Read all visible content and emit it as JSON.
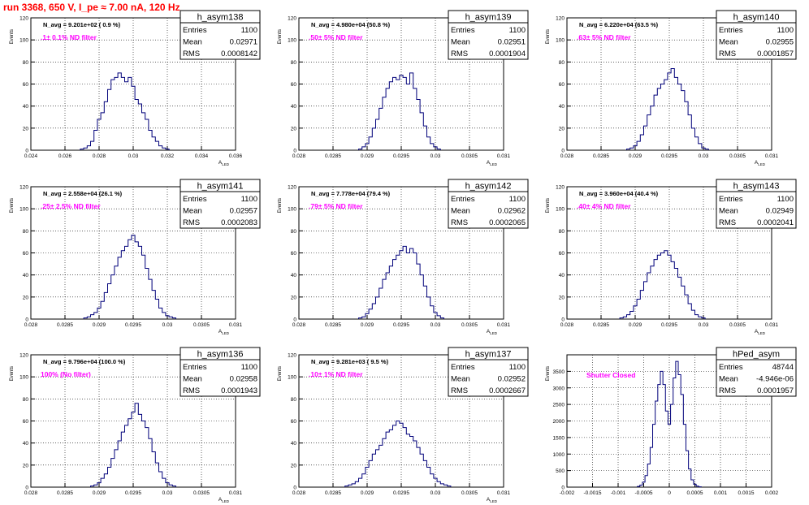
{
  "header": {
    "title": "run 3368,   650 V, I_pe ≈ 7.00 nA, 120 Hz"
  },
  "chart_data": [
    {
      "type": "histogram",
      "name": "h_asym138",
      "stats": {
        "entries_label": "Entries",
        "entries": "1100",
        "mean_label": "Mean",
        "mean": "0.02971",
        "rms_label": "RMS",
        "rms": "0.0008142"
      },
      "navg_text": "N_avg = 9.201e+02 ( 0.9 %)",
      "filter_label": ".1± 0.1% ND filter",
      "ylabel": "Events",
      "xlabel": "A_LED",
      "xlim": [
        0.024,
        0.036
      ],
      "ylim": [
        0,
        120
      ],
      "xticks": [
        0.024,
        0.026,
        0.028,
        0.03,
        0.032,
        0.034,
        0.036
      ],
      "xtick_labels": [
        "0.024",
        "0.026",
        "0.028",
        "0.03",
        "0.032",
        "0.034",
        "0.036"
      ],
      "yticks": [
        0,
        20,
        40,
        60,
        80,
        100,
        120
      ],
      "x": [
        0.027,
        0.0272,
        0.0274,
        0.0276,
        0.0278,
        0.028,
        0.0282,
        0.0284,
        0.0286,
        0.0288,
        0.029,
        0.0292,
        0.0294,
        0.0296,
        0.0298,
        0.03,
        0.0302,
        0.0304,
        0.0306,
        0.0308,
        0.031,
        0.0312,
        0.0314,
        0.0316,
        0.0318,
        0.032
      ],
      "y": [
        1,
        2,
        4,
        8,
        18,
        28,
        34,
        44,
        55,
        64,
        66,
        70,
        66,
        62,
        66,
        58,
        46,
        42,
        34,
        28,
        18,
        12,
        8,
        4,
        2,
        1
      ]
    },
    {
      "type": "histogram",
      "name": "h_asym139",
      "stats": {
        "entries_label": "Entries",
        "entries": "1100",
        "mean_label": "Mean",
        "mean": "0.02951",
        "rms_label": "RMS",
        "rms": "0.0001904"
      },
      "navg_text": "N_avg = 4.980e+04 (50.8 %)",
      "filter_label": ".50± 5% ND filter",
      "ylabel": "Events",
      "xlabel": "A_LED",
      "xlim": [
        0.028,
        0.031
      ],
      "ylim": [
        0,
        120
      ],
      "xticks": [
        0.028,
        0.0285,
        0.029,
        0.0295,
        0.03,
        0.0305,
        0.031
      ],
      "xtick_labels": [
        "0.028",
        "0.0285",
        "0.029",
        "0.0295",
        "0.03",
        "0.0305",
        "0.031"
      ],
      "yticks": [
        0,
        20,
        40,
        60,
        80,
        100,
        120
      ],
      "x": [
        0.0289,
        0.02895,
        0.029,
        0.02905,
        0.0291,
        0.02915,
        0.0292,
        0.02925,
        0.0293,
        0.02935,
        0.0294,
        0.02945,
        0.0295,
        0.02955,
        0.0296,
        0.02965,
        0.0297,
        0.02975,
        0.0298,
        0.02985,
        0.0299,
        0.02995,
        0.03,
        0.03005
      ],
      "y": [
        1,
        3,
        6,
        12,
        20,
        28,
        38,
        48,
        56,
        62,
        66,
        64,
        68,
        66,
        60,
        70,
        56,
        46,
        34,
        22,
        12,
        6,
        3,
        1
      ]
    },
    {
      "type": "histogram",
      "name": "h_asym140",
      "stats": {
        "entries_label": "Entries",
        "entries": "1100",
        "mean_label": "Mean",
        "mean": "0.02955",
        "rms_label": "RMS",
        "rms": "0.0001857"
      },
      "navg_text": "N_avg = 6.220e+04 (63.5 %)",
      "filter_label": ".63± 5% ND filter",
      "ylabel": "Events",
      "xlabel": "A_LED",
      "xlim": [
        0.028,
        0.031
      ],
      "ylim": [
        0,
        120
      ],
      "xticks": [
        0.028,
        0.0285,
        0.029,
        0.0295,
        0.03,
        0.0305,
        0.031
      ],
      "xtick_labels": [
        "0.028",
        "0.0285",
        "0.029",
        "0.0295",
        "0.03",
        "0.0305",
        "0.031"
      ],
      "yticks": [
        0,
        20,
        40,
        60,
        80,
        100,
        120
      ],
      "x": [
        0.0289,
        0.02895,
        0.029,
        0.02905,
        0.0291,
        0.02915,
        0.0292,
        0.02925,
        0.0293,
        0.02935,
        0.0294,
        0.02945,
        0.0295,
        0.02955,
        0.0296,
        0.02965,
        0.0297,
        0.02975,
        0.0298,
        0.02985,
        0.0299,
        0.02995,
        0.03,
        0.03005
      ],
      "y": [
        1,
        2,
        4,
        8,
        14,
        22,
        32,
        40,
        50,
        56,
        60,
        64,
        70,
        74,
        66,
        60,
        54,
        44,
        32,
        20,
        12,
        6,
        2,
        1
      ]
    },
    {
      "type": "histogram",
      "name": "h_asym141",
      "stats": {
        "entries_label": "Entries",
        "entries": "1100",
        "mean_label": "Mean",
        "mean": "0.02957",
        "rms_label": "RMS",
        "rms": "0.0002083"
      },
      "navg_text": "N_avg = 2.558e+04 (26.1 %)",
      "filter_label": ".25± 2.5% ND filter",
      "ylabel": "Events",
      "xlabel": "A_LED",
      "xlim": [
        0.028,
        0.031
      ],
      "ylim": [
        0,
        120
      ],
      "xticks": [
        0.028,
        0.0285,
        0.029,
        0.0295,
        0.03,
        0.0305,
        0.031
      ],
      "xtick_labels": [
        "0.028",
        "0.0285",
        "0.029",
        "0.0295",
        "0.03",
        "0.0305",
        "0.031"
      ],
      "yticks": [
        0,
        20,
        40,
        60,
        80,
        100,
        120
      ],
      "x": [
        0.0288,
        0.02885,
        0.0289,
        0.02895,
        0.029,
        0.02905,
        0.0291,
        0.02915,
        0.0292,
        0.02925,
        0.0293,
        0.02935,
        0.0294,
        0.02945,
        0.0295,
        0.02955,
        0.0296,
        0.02965,
        0.0297,
        0.02975,
        0.0298,
        0.02985,
        0.0299,
        0.02995,
        0.03,
        0.03005,
        0.0301
      ],
      "y": [
        1,
        2,
        4,
        6,
        10,
        16,
        24,
        32,
        40,
        48,
        56,
        62,
        66,
        72,
        76,
        70,
        66,
        58,
        46,
        36,
        26,
        18,
        10,
        6,
        3,
        2,
        1
      ]
    },
    {
      "type": "histogram",
      "name": "h_asym142",
      "stats": {
        "entries_label": "Entries",
        "entries": "1100",
        "mean_label": "Mean",
        "mean": "0.02962",
        "rms_label": "RMS",
        "rms": "0.0002065"
      },
      "navg_text": "N_avg = 7.778e+04 (79.4 %)",
      "filter_label": ".79± 5% ND filter",
      "ylabel": "Events",
      "xlabel": "A_LED",
      "xlim": [
        0.028,
        0.031
      ],
      "ylim": [
        0,
        120
      ],
      "xticks": [
        0.028,
        0.0285,
        0.029,
        0.0295,
        0.03,
        0.0305,
        0.031
      ],
      "xtick_labels": [
        "0.028",
        "0.0285",
        "0.029",
        "0.0295",
        "0.03",
        "0.0305",
        "0.031"
      ],
      "yticks": [
        0,
        20,
        40,
        60,
        80,
        100,
        120
      ],
      "x": [
        0.0289,
        0.02895,
        0.029,
        0.02905,
        0.0291,
        0.02915,
        0.0292,
        0.02925,
        0.0293,
        0.02935,
        0.0294,
        0.02945,
        0.0295,
        0.02955,
        0.0296,
        0.02965,
        0.0297,
        0.02975,
        0.0298,
        0.02985,
        0.0299,
        0.02995,
        0.03,
        0.03005,
        0.0301
      ],
      "y": [
        1,
        2,
        5,
        9,
        14,
        20,
        28,
        36,
        42,
        48,
        54,
        58,
        62,
        66,
        60,
        64,
        60,
        50,
        40,
        30,
        20,
        12,
        6,
        3,
        1
      ]
    },
    {
      "type": "histogram",
      "name": "h_asym143",
      "stats": {
        "entries_label": "Entries",
        "entries": "1100",
        "mean_label": "Mean",
        "mean": "0.02949",
        "rms_label": "RMS",
        "rms": "0.0002041"
      },
      "navg_text": "N_avg = 3.960e+04 (40.4 %)",
      "filter_label": ".40± 4% ND filter",
      "ylabel": "Events",
      "xlabel": "A_LED",
      "xlim": [
        0.028,
        0.031
      ],
      "ylim": [
        0,
        120
      ],
      "xticks": [
        0.028,
        0.0285,
        0.029,
        0.0295,
        0.03,
        0.0305,
        0.031
      ],
      "xtick_labels": [
        "0.028",
        "0.0285",
        "0.029",
        "0.0295",
        "0.03",
        "0.0305",
        "0.031"
      ],
      "yticks": [
        0,
        20,
        40,
        60,
        80,
        100,
        120
      ],
      "x": [
        0.0288,
        0.02885,
        0.0289,
        0.02895,
        0.029,
        0.02905,
        0.0291,
        0.02915,
        0.0292,
        0.02925,
        0.0293,
        0.02935,
        0.0294,
        0.02945,
        0.0295,
        0.02955,
        0.0296,
        0.02965,
        0.0297,
        0.02975,
        0.0298,
        0.02985,
        0.0299,
        0.02995,
        0.03
      ],
      "y": [
        1,
        2,
        4,
        7,
        12,
        18,
        26,
        34,
        42,
        48,
        54,
        58,
        60,
        62,
        58,
        52,
        46,
        38,
        30,
        22,
        14,
        8,
        4,
        2,
        1
      ]
    },
    {
      "type": "histogram",
      "name": "h_asym136",
      "stats": {
        "entries_label": "Entries",
        "entries": "1100",
        "mean_label": "Mean",
        "mean": "0.02958",
        "rms_label": "RMS",
        "rms": "0.0001943"
      },
      "navg_text": "N_avg = 9.796e+04 (100.0 %)",
      "filter_label": "100% (No filter)",
      "ylabel": "Events",
      "xlabel": "A_LED",
      "xlim": [
        0.028,
        0.031
      ],
      "ylim": [
        0,
        120
      ],
      "xticks": [
        0.028,
        0.0285,
        0.029,
        0.0295,
        0.03,
        0.0305,
        0.031
      ],
      "xtick_labels": [
        "0.028",
        "0.0285",
        "0.029",
        "0.0295",
        "0.03",
        "0.0305",
        "0.031"
      ],
      "yticks": [
        0,
        20,
        40,
        60,
        80,
        100,
        120
      ],
      "x": [
        0.0289,
        0.02895,
        0.029,
        0.02905,
        0.0291,
        0.02915,
        0.0292,
        0.02925,
        0.0293,
        0.02935,
        0.0294,
        0.02945,
        0.0295,
        0.02955,
        0.0296,
        0.02965,
        0.0297,
        0.02975,
        0.0298,
        0.02985,
        0.0299,
        0.02995,
        0.03,
        0.03005,
        0.0301
      ],
      "y": [
        1,
        2,
        4,
        8,
        12,
        18,
        26,
        34,
        42,
        50,
        56,
        62,
        68,
        76,
        66,
        60,
        54,
        44,
        32,
        22,
        14,
        8,
        4,
        2,
        1
      ]
    },
    {
      "type": "histogram",
      "name": "h_asym137",
      "stats": {
        "entries_label": "Entries",
        "entries": "1100",
        "mean_label": "Mean",
        "mean": "0.02952",
        "rms_label": "RMS",
        "rms": "0.0002667"
      },
      "navg_text": "N_avg = 9.281e+03 ( 9.5 %)",
      "filter_label": ".10± 1% ND filter",
      "ylabel": "Events",
      "xlabel": "A_LED",
      "xlim": [
        0.028,
        0.031
      ],
      "ylim": [
        0,
        120
      ],
      "xticks": [
        0.028,
        0.0285,
        0.029,
        0.0295,
        0.03,
        0.0305,
        0.031
      ],
      "xtick_labels": [
        "0.028",
        "0.0285",
        "0.029",
        "0.0295",
        "0.03",
        "0.0305",
        "0.031"
      ],
      "yticks": [
        0,
        20,
        40,
        60,
        80,
        100,
        120
      ],
      "x": [
        0.0287,
        0.02875,
        0.0288,
        0.02885,
        0.0289,
        0.02895,
        0.029,
        0.02905,
        0.0291,
        0.02915,
        0.0292,
        0.02925,
        0.0293,
        0.02935,
        0.0294,
        0.02945,
        0.0295,
        0.02955,
        0.0296,
        0.02965,
        0.0297,
        0.02975,
        0.0298,
        0.02985,
        0.0299,
        0.02995,
        0.03,
        0.03005,
        0.0301,
        0.03015,
        0.0302
      ],
      "y": [
        1,
        2,
        3,
        5,
        8,
        12,
        18,
        24,
        30,
        34,
        38,
        44,
        50,
        52,
        56,
        60,
        58,
        54,
        48,
        46,
        42,
        36,
        30,
        24,
        18,
        12,
        8,
        5,
        3,
        2,
        1
      ]
    },
    {
      "type": "histogram",
      "name": "hPed_asym",
      "stats": {
        "entries_label": "Entries",
        "entries": "48744",
        "mean_label": "Mean",
        "mean": "-4.946e-06",
        "rms_label": "RMS",
        "rms": "0.0001957"
      },
      "navg_text": "",
      "filter_label": "Shutter Closed",
      "ylabel": "Events",
      "xlabel": "",
      "xlim": [
        -0.002,
        0.002
      ],
      "ylim": [
        0,
        4000
      ],
      "xticks": [
        -0.002,
        -0.0015,
        -0.001,
        -0.0005,
        0,
        0.0005,
        0.001,
        0.0015,
        0.002
      ],
      "xtick_labels": [
        "-0.002",
        "-0.0015",
        "-0.001",
        "-0.0005",
        "0",
        "0.0005",
        "0.001",
        "0.0015",
        "0.002"
      ],
      "yticks": [
        0,
        500,
        1000,
        1500,
        2000,
        2500,
        3000,
        3500
      ],
      "x": [
        -0.0006,
        -0.00055,
        -0.0005,
        -0.00045,
        -0.0004,
        -0.00035,
        -0.0003,
        -0.00025,
        -0.0002,
        -0.00015,
        -0.0001,
        -5e-05,
        0,
        5e-05,
        0.0001,
        0.00015,
        0.0002,
        0.00025,
        0.0003,
        0.00035,
        0.0004,
        0.00045,
        0.0005,
        0.00055,
        0.0006
      ],
      "y": [
        20,
        60,
        150,
        350,
        700,
        1200,
        1900,
        2600,
        3100,
        3500,
        3100,
        2300,
        1900,
        2500,
        3300,
        3800,
        3400,
        2800,
        1900,
        1100,
        550,
        220,
        90,
        30,
        10
      ]
    }
  ]
}
